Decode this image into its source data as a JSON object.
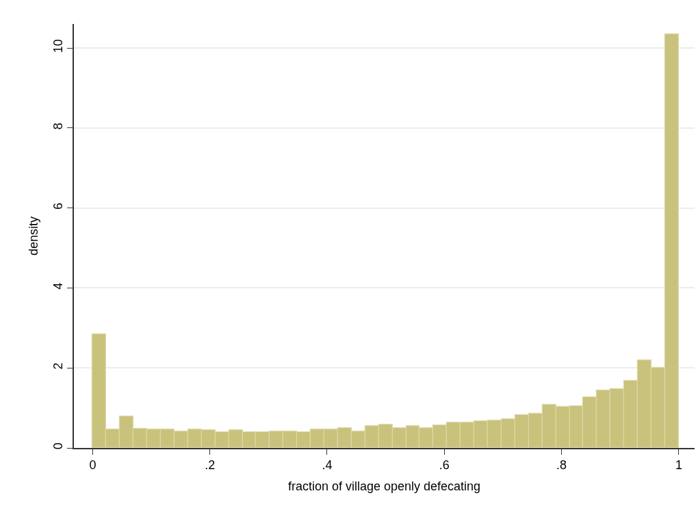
{
  "chart_data": {
    "type": "histogram",
    "xlabel": "fraction of village openly defecating",
    "ylabel": "density",
    "bins": [
      0,
      0.023256,
      0.046512,
      0.069767,
      0.093023,
      0.116279,
      0.139535,
      0.162791,
      0.186047,
      0.209302,
      0.232558,
      0.255814,
      0.27907,
      0.302326,
      0.325581,
      0.348837,
      0.372093,
      0.395349,
      0.418605,
      0.44186,
      0.465116,
      0.488372,
      0.511628,
      0.534884,
      0.55814,
      0.581395,
      0.604651,
      0.627907,
      0.651163,
      0.674419,
      0.697674,
      0.72093,
      0.744186,
      0.767442,
      0.790698,
      0.813953,
      0.837209,
      0.860465,
      0.883721,
      0.906977,
      0.930233,
      0.953488,
      0.976744,
      1
    ],
    "values": [
      2.85,
      0.46,
      0.78,
      0.48,
      0.47,
      0.47,
      0.41,
      0.46,
      0.44,
      0.4,
      0.44,
      0.4,
      0.4,
      0.41,
      0.41,
      0.39,
      0.46,
      0.47,
      0.49,
      0.41,
      0.55,
      0.59,
      0.5,
      0.54,
      0.5,
      0.57,
      0.63,
      0.64,
      0.66,
      0.69,
      0.72,
      0.82,
      0.85,
      1.08,
      1.03,
      1.05,
      1.27,
      1.43,
      1.48,
      1.67,
      2.2,
      2.01,
      10.34
    ],
    "color": "#c9c27c",
    "xlim": [
      -0.032,
      1.027
    ],
    "ylim": [
      0,
      10.6
    ],
    "xticks": [
      0,
      {
        "value": 0.2,
        "label": ".2"
      },
      {
        "value": 0.4,
        "label": ".4"
      },
      {
        "value": 0.6,
        "label": ".6"
      },
      {
        "value": 0.8,
        "label": ".8"
      },
      1
    ],
    "yticks": [
      0,
      2,
      4,
      6,
      8,
      10
    ],
    "grid": "y"
  }
}
